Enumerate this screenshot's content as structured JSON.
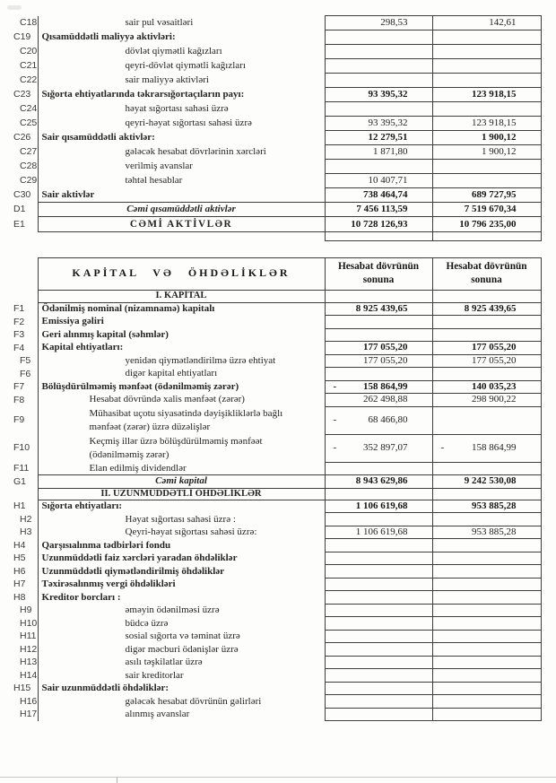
{
  "table1": {
    "rows": [
      {
        "code": "C18",
        "label": "sair pul vəsaitləri",
        "indent": 1,
        "v1": "298,53",
        "v2": "142,61"
      },
      {
        "code": "C19",
        "label": "Qısamüddətli maliyyə aktivləri:",
        "bold": true,
        "v1": "",
        "v2": ""
      },
      {
        "code": "C20",
        "label": "dövlət qiymətli kağızları",
        "indent": 1,
        "v1": "",
        "v2": ""
      },
      {
        "code": "C21",
        "label": "qeyri-dövlət qiymətli kağızları",
        "indent": 1,
        "v1": "",
        "v2": ""
      },
      {
        "code": "C22",
        "label": "sair maliyyə aktivləri",
        "indent": 1,
        "v1": "",
        "v2": ""
      },
      {
        "code": "C23",
        "label": "Sığorta ehtiyatlarında təkrarsığortaçıların payı:",
        "bold": true,
        "vbold": true,
        "v1": "93 395,32",
        "v2": "123 918,15"
      },
      {
        "code": "C24",
        "label": "həyat sığortası sahəsi üzrə",
        "indent": 1,
        "v1": "",
        "v2": ""
      },
      {
        "code": "C25",
        "label": "qeyri-həyat sığortası sahəsi üzrə",
        "indent": 1,
        "v1": "93 395,32",
        "v2": "123 918,15"
      },
      {
        "code": "C26",
        "label": "Sair qısamüddətli aktivlər:",
        "bold": true,
        "vbold": true,
        "v1": "12 279,51",
        "v2": "1 900,12"
      },
      {
        "code": "C27",
        "label": "gələcək hesabat dövrlərinin xərcləri",
        "indent": 1,
        "v1": "1 871,80",
        "v2": "1 900,12"
      },
      {
        "code": "C28",
        "label": "verilmiş avanslar",
        "indent": 1,
        "v1": "",
        "v2": ""
      },
      {
        "code": "C29",
        "label": "təhtəl hesablar",
        "indent": 1,
        "v1": "10 407,71",
        "v2": ""
      },
      {
        "code": "C30",
        "label": "Sair aktivlər",
        "bold": true,
        "vbold": true,
        "v1": "738 464,74",
        "v2": "689 727,95"
      },
      {
        "code": "D1",
        "label": "Cəmi qısamüddətli aktivlər",
        "type": "total",
        "bold": true,
        "italic": true,
        "vbold": true,
        "v1": "7 456 113,59",
        "v2": "7 519 670,34"
      },
      {
        "code": "E1",
        "label": "CƏMİ AKTİVLƏR",
        "type": "total",
        "bold": true,
        "caps": true,
        "vbold": true,
        "v1": "10 728 126,93",
        "v2": "10 796 235,00"
      },
      {
        "type": "spacer",
        "v1": "",
        "v2": ""
      }
    ]
  },
  "table2": {
    "title": "KAPİTAL VƏ ÖHDƏLİKLƏR",
    "col1_header": "Hesabat dövrünün sonuna",
    "col2_header": "Hesabat dövrünün sonuna",
    "rows": [
      {
        "type": "section",
        "label": "I. KAPİTAL",
        "bold": true,
        "v1": "",
        "v2": ""
      },
      {
        "code": "F1",
        "label": "Ödənilmiş nominal (nizamnamə) kapitalı",
        "bold": true,
        "vbold": true,
        "v1": "8 925 439,65",
        "v2": "8 925 439,65"
      },
      {
        "code": "F2",
        "label": "Emissiya gəliri",
        "bold": true,
        "v1": "",
        "v2": ""
      },
      {
        "code": "F3",
        "label": "Geri alınmış kapital (səhmlər)",
        "bold": true,
        "v1": "",
        "v2": ""
      },
      {
        "code": "F4",
        "label": "Kapital ehtiyatları:",
        "bold": true,
        "vbold": true,
        "v1": "177 055,20",
        "v2": "177 055,20"
      },
      {
        "code": "F5",
        "label": "yenidən qiymətləndirilmə üzrə ehtiyat",
        "indent": 1,
        "v1": "177 055,20",
        "v2": "177 055,20"
      },
      {
        "code": "F6",
        "label": "digər kapital ehtiyatları",
        "indent": 1,
        "v1": "",
        "v2": ""
      },
      {
        "code": "F7",
        "label": "Bölüşdürülməmiş mənfəət (ödənilməmiş zərər)",
        "bold": true,
        "vbold": true,
        "neg1": true,
        "v1": "158 864,99",
        "v2": "140 035,23"
      },
      {
        "code": "F8",
        "label": "Hesabat dövründə xalis mənfəət (zərər)",
        "indent": 2,
        "v1": "262 498,88",
        "v2": "298 900,22"
      },
      {
        "code": "F9",
        "label": "Mühasibat uçotu siyasətində dəyişikliklərlə bağlı\nmənfəət (zərər) üzrə düzəlişlər",
        "indent": 2,
        "tall": true,
        "neg1": true,
        "v1": "68 466,80",
        "v2": ""
      },
      {
        "code": "F10",
        "label": "Keçmiş illər üzrə bölüşdürülməmiş mənfəət\n(ödənilməmiş zərər)",
        "indent": 2,
        "tall": true,
        "neg1": true,
        "neg2": true,
        "v1": "352 897,07",
        "v2": "158 864,99"
      },
      {
        "code": "F11",
        "label": "Elan edilmiş dividendlər",
        "indent": 2,
        "v1": "",
        "v2": ""
      },
      {
        "code": "G1",
        "label": "Cəmi kapital",
        "type": "total",
        "bold": true,
        "italic": true,
        "vbold": true,
        "v1": "8 943 629,86",
        "v2": "9 242 530,08"
      },
      {
        "type": "section",
        "label": "II. UZUNMÜDDƏTLİ ÖHDƏLİKLƏR",
        "bold": true,
        "sub": true,
        "v1": "",
        "v2": ""
      },
      {
        "code": "H1",
        "label": "Sığorta ehtiyatları:",
        "bold": true,
        "vbold": true,
        "v1": "1 106 619,68",
        "v2": "953 885,28"
      },
      {
        "code": "H2",
        "label": "Həyat sığortası sahəsi üzrə :",
        "indent": 1,
        "v1": "",
        "v2": ""
      },
      {
        "code": "H3",
        "label": "Qeyri-həyat sığortası sahəsi üzrə:",
        "indent": 1,
        "v1": "1 106 619,68",
        "v2": "953 885,28"
      },
      {
        "code": "H4",
        "label": "Qarşısıalınma tədbirləri fondu",
        "bold": true,
        "v1": "",
        "v2": ""
      },
      {
        "code": "H5",
        "label": "Uzunmüddətli faiz xərcləri yaradan öhdəliklər",
        "bold": true,
        "v1": "",
        "v2": ""
      },
      {
        "code": "H6",
        "label": "Uzunmüddətli qiymətləndirilmiş öhdəliklər",
        "bold": true,
        "v1": "",
        "v2": ""
      },
      {
        "code": "H7",
        "label": "Təxirəsalınmış vergi öhdəlikləri",
        "bold": true,
        "v1": "",
        "v2": ""
      },
      {
        "code": "H8",
        "label": "Kreditor borcları :",
        "bold": true,
        "v1": "",
        "v2": ""
      },
      {
        "code": "H9",
        "label": "əməyin ödənilməsi üzrə",
        "indent": 1,
        "v1": "",
        "v2": ""
      },
      {
        "code": "H10",
        "label": "büdcə üzrə",
        "indent": 1,
        "v1": "",
        "v2": ""
      },
      {
        "code": "H11",
        "label": "sosial sığorta və təminat üzrə",
        "indent": 1,
        "v1": "",
        "v2": ""
      },
      {
        "code": "H12",
        "label": "digər məcburi ödənişlər üzrə",
        "indent": 1,
        "v1": "",
        "v2": ""
      },
      {
        "code": "H13",
        "label": "asılı təşkilatlar üzrə",
        "indent": 1,
        "v1": "",
        "v2": ""
      },
      {
        "code": "H14",
        "label": "sair kreditorlar",
        "indent": 1,
        "v1": "",
        "v2": ""
      },
      {
        "code": "H15",
        "label": "Sair uzunmüddətli öhdəliklər:",
        "bold": true,
        "v1": "",
        "v2": ""
      },
      {
        "code": "H16",
        "label": "gələcək hesabat dövrünün gəlirləri",
        "indent": 1,
        "v1": "",
        "v2": ""
      },
      {
        "code": "H17",
        "label": "alınmış avanslar",
        "indent": 1,
        "v1": "",
        "v2": ""
      }
    ]
  }
}
